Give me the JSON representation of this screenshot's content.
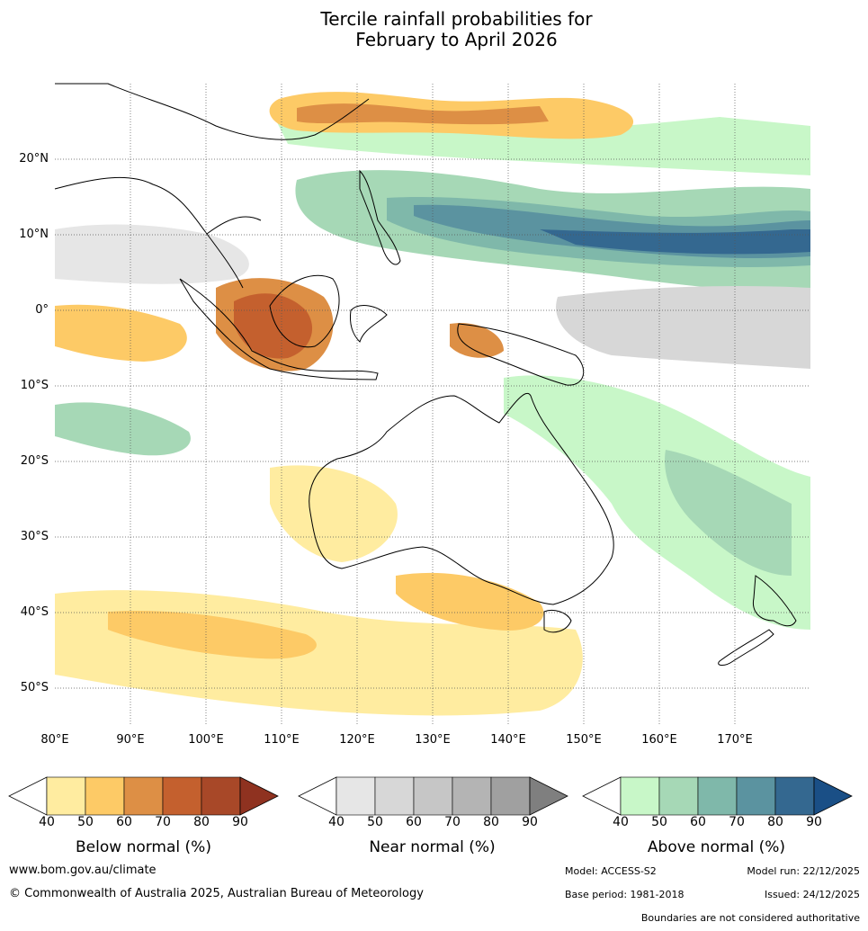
{
  "title_line1": "Tercile rainfall probabilities for",
  "title_line2": "February to April 2026",
  "lat_ticks": [
    "20°N",
    "10°N",
    "0°",
    "10°S",
    "20°S",
    "30°S",
    "40°S",
    "50°S"
  ],
  "lon_ticks": [
    "80°E",
    "90°E",
    "100°E",
    "110°E",
    "120°E",
    "130°E",
    "140°E",
    "150°E",
    "160°E",
    "170°E"
  ],
  "colorbars": [
    {
      "name": "below",
      "title": "Below normal (%)",
      "colors": [
        "#ffeca0",
        "#fdca66",
        "#dd8f45",
        "#c4602e",
        "#a84828"
      ],
      "over": "#8f3220",
      "labels": [
        "40",
        "50",
        "60",
        "70",
        "80",
        "90"
      ]
    },
    {
      "name": "near",
      "title": "Near normal (%)",
      "colors": [
        "#e6e6e6",
        "#d7d7d7",
        "#c6c6c6",
        "#b4b4b4",
        "#a0a0a0"
      ],
      "over": "#7f7f7f",
      "labels": [
        "40",
        "50",
        "60",
        "70",
        "80",
        "90"
      ]
    },
    {
      "name": "above",
      "title": "Above normal (%)",
      "colors": [
        "#c8f7c8",
        "#a6d8b6",
        "#7fb8aa",
        "#5b93a0",
        "#346890"
      ],
      "over": "#1a4f86",
      "labels": [
        "40",
        "50",
        "60",
        "70",
        "80",
        "90"
      ]
    }
  ],
  "footer": {
    "url": "www.bom.gov.au/climate",
    "copyright": "© Commonwealth of Australia 2025, Australian Bureau of Meteorology",
    "model": "Model: ACCESS-S2",
    "model_run": "Model run: 22/12/2025",
    "base_period": "Base period: 1981-2018",
    "issued": "Issued: 24/12/2025",
    "disclaimer": "Boundaries are not considered authoritative"
  }
}
